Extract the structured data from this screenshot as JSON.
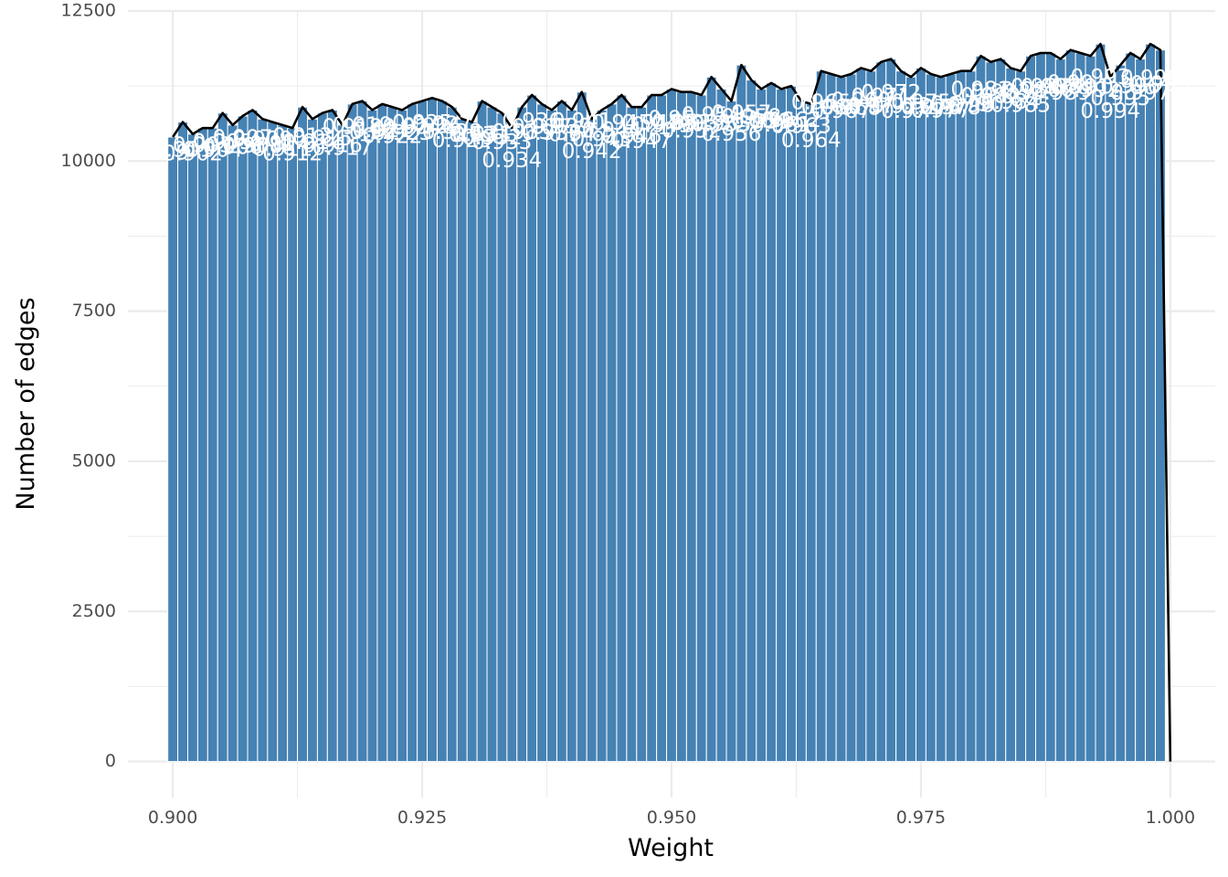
{
  "chart_data": {
    "type": "bar",
    "xlabel": "Weight",
    "ylabel": "Number of edges",
    "xlim": [
      0.8955,
      1.0045
    ],
    "ylim": [
      -600,
      12500
    ],
    "x_ticks": [
      0.9,
      0.925,
      0.95,
      0.975,
      1.0
    ],
    "x_tick_labels": [
      "0.900",
      "0.925",
      "0.950",
      "0.975",
      "1.000"
    ],
    "y_ticks": [
      0,
      2500,
      5000,
      7500,
      10000,
      12500
    ],
    "y_tick_labels": [
      "0",
      "2500",
      "5000",
      "7500",
      "10000",
      "12500"
    ],
    "grid": true,
    "legend": "none",
    "bar_color": "#4682b4",
    "line_color": "#000000",
    "bar_width": 0.001,
    "x": [
      0.9,
      0.901,
      0.902,
      0.903,
      0.904,
      0.905,
      0.906,
      0.907,
      0.908,
      0.909,
      0.91,
      0.911,
      0.912,
      0.913,
      0.914,
      0.915,
      0.916,
      0.917,
      0.918,
      0.919,
      0.92,
      0.921,
      0.922,
      0.923,
      0.924,
      0.925,
      0.926,
      0.927,
      0.928,
      0.929,
      0.93,
      0.931,
      0.932,
      0.933,
      0.934,
      0.935,
      0.936,
      0.937,
      0.938,
      0.939,
      0.94,
      0.941,
      0.942,
      0.943,
      0.944,
      0.945,
      0.946,
      0.947,
      0.948,
      0.949,
      0.95,
      0.951,
      0.952,
      0.953,
      0.954,
      0.955,
      0.956,
      0.957,
      0.958,
      0.959,
      0.96,
      0.961,
      0.962,
      0.963,
      0.964,
      0.965,
      0.966,
      0.967,
      0.968,
      0.969,
      0.97,
      0.971,
      0.972,
      0.973,
      0.974,
      0.975,
      0.976,
      0.977,
      0.978,
      0.979,
      0.98,
      0.981,
      0.982,
      0.983,
      0.984,
      0.985,
      0.986,
      0.987,
      0.988,
      0.989,
      0.99,
      0.991,
      0.992,
      0.993,
      0.994,
      0.995,
      0.996,
      0.997,
      0.998,
      0.999,
      1.0
    ],
    "values": [
      10400,
      10650,
      10450,
      10550,
      10550,
      10800,
      10600,
      10750,
      10850,
      10700,
      10650,
      10600,
      10550,
      10900,
      10700,
      10800,
      10850,
      10600,
      10950,
      11000,
      10850,
      10950,
      10900,
      10850,
      10950,
      11000,
      11050,
      11000,
      10900,
      10700,
      10650,
      11000,
      10900,
      10800,
      10550,
      10900,
      11100,
      10950,
      10850,
      11000,
      10850,
      11150,
      10700,
      10850,
      10950,
      11100,
      10900,
      10900,
      11100,
      11100,
      11200,
      11150,
      11150,
      11100,
      11400,
      11200,
      11000,
      11600,
      11350,
      11200,
      11300,
      11200,
      11250,
      11000,
      10950,
      11500,
      11450,
      11400,
      11450,
      11550,
      11500,
      11650,
      11700,
      11500,
      11400,
      11550,
      11450,
      11400,
      11450,
      11500,
      11500,
      11750,
      11650,
      11700,
      11550,
      11500,
      11750,
      11800,
      11800,
      11700,
      11850,
      11800,
      11750,
      11950,
      11400,
      11600,
      11800,
      11700,
      11950,
      11850,
      0
    ],
    "labels": [
      {
        "x": 0.9,
        "y": 10130,
        "text": "0.9"
      },
      {
        "x": 0.901,
        "y": 10170,
        "text": "0.901"
      },
      {
        "x": 0.902,
        "y": 10110,
        "text": "0.902"
      },
      {
        "x": 0.903,
        "y": 10250,
        "text": "0.903"
      },
      {
        "x": 0.904,
        "y": 10170,
        "text": "0.904"
      },
      {
        "x": 0.905,
        "y": 10300,
        "text": "0.905"
      },
      {
        "x": 0.906,
        "y": 10220,
        "text": "0.906"
      },
      {
        "x": 0.907,
        "y": 10370,
        "text": "0.907"
      },
      {
        "x": 0.908,
        "y": 10240,
        "text": "0.908"
      },
      {
        "x": 0.909,
        "y": 10350,
        "text": "0.909"
      },
      {
        "x": 0.91,
        "y": 10270,
        "text": "0.91"
      },
      {
        "x": 0.911,
        "y": 10190,
        "text": "0.911"
      },
      {
        "x": 0.912,
        "y": 10110,
        "text": "0.912"
      },
      {
        "x": 0.913,
        "y": 10400,
        "text": "0.913"
      },
      {
        "x": 0.914,
        "y": 10300,
        "text": "0.914"
      },
      {
        "x": 0.915,
        "y": 10360,
        "text": "0.915"
      },
      {
        "x": 0.916,
        "y": 10250,
        "text": "0.916"
      },
      {
        "x": 0.917,
        "y": 10200,
        "text": "0.917"
      },
      {
        "x": 0.918,
        "y": 10550,
        "text": "0.918"
      },
      {
        "x": 0.919,
        "y": 10580,
        "text": "0.919"
      },
      {
        "x": 0.92,
        "y": 10470,
        "text": "0.92"
      },
      {
        "x": 0.921,
        "y": 10500,
        "text": "0.921"
      },
      {
        "x": 0.922,
        "y": 10400,
        "text": "0.922"
      },
      {
        "x": 0.923,
        "y": 10450,
        "text": "0.923"
      },
      {
        "x": 0.924,
        "y": 10550,
        "text": "0.924"
      },
      {
        "x": 0.925,
        "y": 10620,
        "text": "0.925"
      },
      {
        "x": 0.926,
        "y": 10570,
        "text": "0.926"
      },
      {
        "x": 0.927,
        "y": 10600,
        "text": "0.927"
      },
      {
        "x": 0.928,
        "y": 10470,
        "text": "0.928"
      },
      {
        "x": 0.929,
        "y": 10330,
        "text": "0.929"
      },
      {
        "x": 0.93,
        "y": 10420,
        "text": "0.93"
      },
      {
        "x": 0.931,
        "y": 10430,
        "text": "0.931"
      },
      {
        "x": 0.932,
        "y": 10380,
        "text": "0.932"
      },
      {
        "x": 0.933,
        "y": 10300,
        "text": "0.933"
      },
      {
        "x": 0.934,
        "y": 10000,
        "text": "0.934"
      },
      {
        "x": 0.935,
        "y": 10470,
        "text": "0.935"
      },
      {
        "x": 0.936,
        "y": 10650,
        "text": "0.936"
      },
      {
        "x": 0.937,
        "y": 10550,
        "text": "0.937"
      },
      {
        "x": 0.938,
        "y": 10450,
        "text": "0.938"
      },
      {
        "x": 0.939,
        "y": 10560,
        "text": "0.939"
      },
      {
        "x": 0.94,
        "y": 10430,
        "text": "0.94"
      },
      {
        "x": 0.941,
        "y": 10650,
        "text": "0.941"
      },
      {
        "x": 0.942,
        "y": 10150,
        "text": "0.942"
      },
      {
        "x": 0.943,
        "y": 10350,
        "text": "0.943"
      },
      {
        "x": 0.944,
        "y": 10500,
        "text": "0.944"
      },
      {
        "x": 0.945,
        "y": 10620,
        "text": "0.945"
      },
      {
        "x": 0.946,
        "y": 10400,
        "text": "0.946"
      },
      {
        "x": 0.947,
        "y": 10320,
        "text": "0.947"
      },
      {
        "x": 0.948,
        "y": 10620,
        "text": "0.948"
      },
      {
        "x": 0.949,
        "y": 10580,
        "text": "0.949"
      },
      {
        "x": 0.95,
        "y": 10690,
        "text": "0.95"
      },
      {
        "x": 0.951,
        "y": 10630,
        "text": "0.951"
      },
      {
        "x": 0.952,
        "y": 10490,
        "text": "0.952"
      },
      {
        "x": 0.953,
        "y": 10620,
        "text": "0.953"
      },
      {
        "x": 0.954,
        "y": 10750,
        "text": "0.954"
      },
      {
        "x": 0.955,
        "y": 10600,
        "text": "0.955"
      },
      {
        "x": 0.956,
        "y": 10440,
        "text": "0.956"
      },
      {
        "x": 0.957,
        "y": 10780,
        "text": "0.957"
      },
      {
        "x": 0.958,
        "y": 10720,
        "text": "0.958"
      },
      {
        "x": 0.959,
        "y": 10640,
        "text": "0.959"
      },
      {
        "x": 0.96,
        "y": 10660,
        "text": "0.96"
      },
      {
        "x": 0.961,
        "y": 10590,
        "text": "0.961"
      },
      {
        "x": 0.962,
        "y": 10670,
        "text": "0.962"
      },
      {
        "x": 0.963,
        "y": 10570,
        "text": "0.963"
      },
      {
        "x": 0.964,
        "y": 10330,
        "text": "0.964"
      },
      {
        "x": 0.965,
        "y": 10960,
        "text": "0.965"
      },
      {
        "x": 0.966,
        "y": 10880,
        "text": "0.966"
      },
      {
        "x": 0.967,
        "y": 10820,
        "text": "0.967"
      },
      {
        "x": 0.968,
        "y": 10870,
        "text": "0.968"
      },
      {
        "x": 0.969,
        "y": 10990,
        "text": "0.969"
      },
      {
        "x": 0.97,
        "y": 10900,
        "text": "0.97"
      },
      {
        "x": 0.971,
        "y": 11060,
        "text": "0.971"
      },
      {
        "x": 0.972,
        "y": 11120,
        "text": "0.972"
      },
      {
        "x": 0.973,
        "y": 10900,
        "text": "0.973"
      },
      {
        "x": 0.974,
        "y": 10820,
        "text": "0.974"
      },
      {
        "x": 0.975,
        "y": 10960,
        "text": "0.975"
      },
      {
        "x": 0.976,
        "y": 10880,
        "text": "0.976"
      },
      {
        "x": 0.977,
        "y": 10830,
        "text": "0.977"
      },
      {
        "x": 0.978,
        "y": 10880,
        "text": "0.978"
      },
      {
        "x": 0.979,
        "y": 10930,
        "text": "0.979"
      },
      {
        "x": 0.98,
        "y": 10920,
        "text": "0.98"
      },
      {
        "x": 0.981,
        "y": 11180,
        "text": "0.981"
      },
      {
        "x": 0.982,
        "y": 11070,
        "text": "0.982"
      },
      {
        "x": 0.983,
        "y": 11130,
        "text": "0.983"
      },
      {
        "x": 0.984,
        "y": 10970,
        "text": "0.984"
      },
      {
        "x": 0.985,
        "y": 10920,
        "text": "0.985"
      },
      {
        "x": 0.986,
        "y": 11170,
        "text": "0.986"
      },
      {
        "x": 0.987,
        "y": 11220,
        "text": "0.987"
      },
      {
        "x": 0.988,
        "y": 11220,
        "text": "0.988"
      },
      {
        "x": 0.989,
        "y": 11120,
        "text": "0.989"
      },
      {
        "x": 0.99,
        "y": 11280,
        "text": "0.99"
      },
      {
        "x": 0.991,
        "y": 11220,
        "text": "0.991"
      },
      {
        "x": 0.992,
        "y": 11170,
        "text": "0.992"
      },
      {
        "x": 0.993,
        "y": 11380,
        "text": "0.993"
      },
      {
        "x": 0.994,
        "y": 10820,
        "text": "0.994"
      },
      {
        "x": 0.995,
        "y": 11030,
        "text": "0.995"
      },
      {
        "x": 0.996,
        "y": 11230,
        "text": "0.996"
      },
      {
        "x": 0.997,
        "y": 11120,
        "text": "0.997"
      },
      {
        "x": 0.998,
        "y": 11370,
        "text": "0.998"
      },
      {
        "x": 0.999,
        "y": 11270,
        "text": "0.999"
      }
    ]
  }
}
